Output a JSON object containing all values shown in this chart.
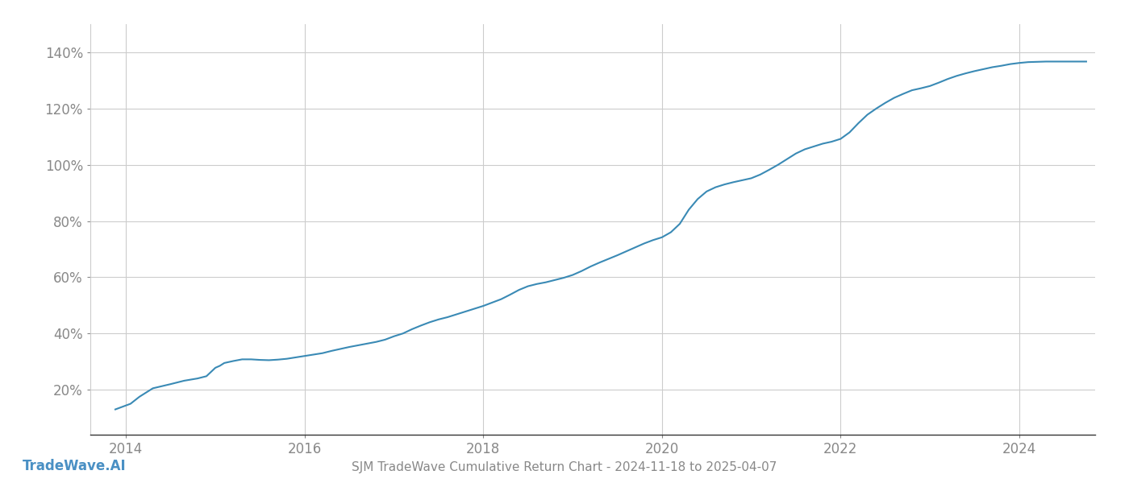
{
  "title": "SJM TradeWave Cumulative Return Chart - 2024-11-18 to 2025-04-07",
  "watermark": "TradeWave.AI",
  "line_color": "#3a8ab5",
  "background_color": "#ffffff",
  "grid_color": "#cccccc",
  "axis_color": "#888888",
  "watermark_color": "#4a90c4",
  "xlim": [
    2013.6,
    2024.85
  ],
  "ylim_min": 0.04,
  "ylim_max": 1.5,
  "x_ticks": [
    2014,
    2016,
    2018,
    2020,
    2022,
    2024
  ],
  "y_ticks": [
    0.2,
    0.4,
    0.6,
    0.8,
    1.0,
    1.2,
    1.4
  ],
  "y_tick_labels": [
    "20%",
    "40%",
    "60%",
    "80%",
    "100%",
    "120%",
    "140%"
  ],
  "data_x": [
    2013.88,
    2014.05,
    2014.15,
    2014.3,
    2014.5,
    2014.65,
    2014.8,
    2014.9,
    2015.0,
    2015.05,
    2015.1,
    2015.2,
    2015.3,
    2015.4,
    2015.5,
    2015.6,
    2015.7,
    2015.8,
    2015.9,
    2016.0,
    2016.1,
    2016.2,
    2016.3,
    2016.4,
    2016.5,
    2016.6,
    2016.7,
    2016.8,
    2016.9,
    2017.0,
    2017.1,
    2017.2,
    2017.3,
    2017.4,
    2017.5,
    2017.6,
    2017.7,
    2017.8,
    2017.9,
    2018.0,
    2018.1,
    2018.2,
    2018.3,
    2018.4,
    2018.5,
    2018.6,
    2018.7,
    2018.8,
    2018.9,
    2019.0,
    2019.1,
    2019.2,
    2019.3,
    2019.4,
    2019.5,
    2019.6,
    2019.7,
    2019.8,
    2019.9,
    2020.0,
    2020.1,
    2020.2,
    2020.3,
    2020.4,
    2020.5,
    2020.6,
    2020.7,
    2020.8,
    2020.9,
    2021.0,
    2021.1,
    2021.2,
    2021.3,
    2021.4,
    2021.5,
    2021.6,
    2021.7,
    2021.8,
    2021.9,
    2022.0,
    2022.1,
    2022.2,
    2022.3,
    2022.4,
    2022.5,
    2022.6,
    2022.7,
    2022.8,
    2022.9,
    2023.0,
    2023.1,
    2023.2,
    2023.3,
    2023.4,
    2023.5,
    2023.6,
    2023.7,
    2023.8,
    2023.9,
    2024.0,
    2024.1,
    2024.2,
    2024.3,
    2024.4,
    2024.5,
    2024.6,
    2024.7,
    2024.75
  ],
  "data_y": [
    0.13,
    0.15,
    0.175,
    0.205,
    0.22,
    0.232,
    0.24,
    0.248,
    0.278,
    0.285,
    0.295,
    0.302,
    0.308,
    0.308,
    0.306,
    0.305,
    0.307,
    0.31,
    0.315,
    0.32,
    0.325,
    0.33,
    0.338,
    0.345,
    0.352,
    0.358,
    0.364,
    0.37,
    0.378,
    0.39,
    0.4,
    0.415,
    0.428,
    0.44,
    0.45,
    0.458,
    0.468,
    0.478,
    0.488,
    0.498,
    0.51,
    0.522,
    0.538,
    0.555,
    0.568,
    0.576,
    0.582,
    0.59,
    0.598,
    0.608,
    0.622,
    0.638,
    0.652,
    0.665,
    0.678,
    0.692,
    0.706,
    0.72,
    0.732,
    0.742,
    0.76,
    0.79,
    0.84,
    0.878,
    0.905,
    0.92,
    0.93,
    0.938,
    0.945,
    0.952,
    0.965,
    0.982,
    1.0,
    1.02,
    1.04,
    1.055,
    1.065,
    1.075,
    1.082,
    1.092,
    1.115,
    1.148,
    1.178,
    1.2,
    1.22,
    1.238,
    1.252,
    1.265,
    1.272,
    1.28,
    1.292,
    1.305,
    1.316,
    1.325,
    1.333,
    1.34,
    1.347,
    1.352,
    1.358,
    1.362,
    1.365,
    1.366,
    1.367,
    1.367,
    1.367,
    1.367,
    1.367,
    1.367
  ],
  "title_fontsize": 11,
  "watermark_fontsize": 12,
  "tick_fontsize": 12,
  "line_width": 1.5
}
